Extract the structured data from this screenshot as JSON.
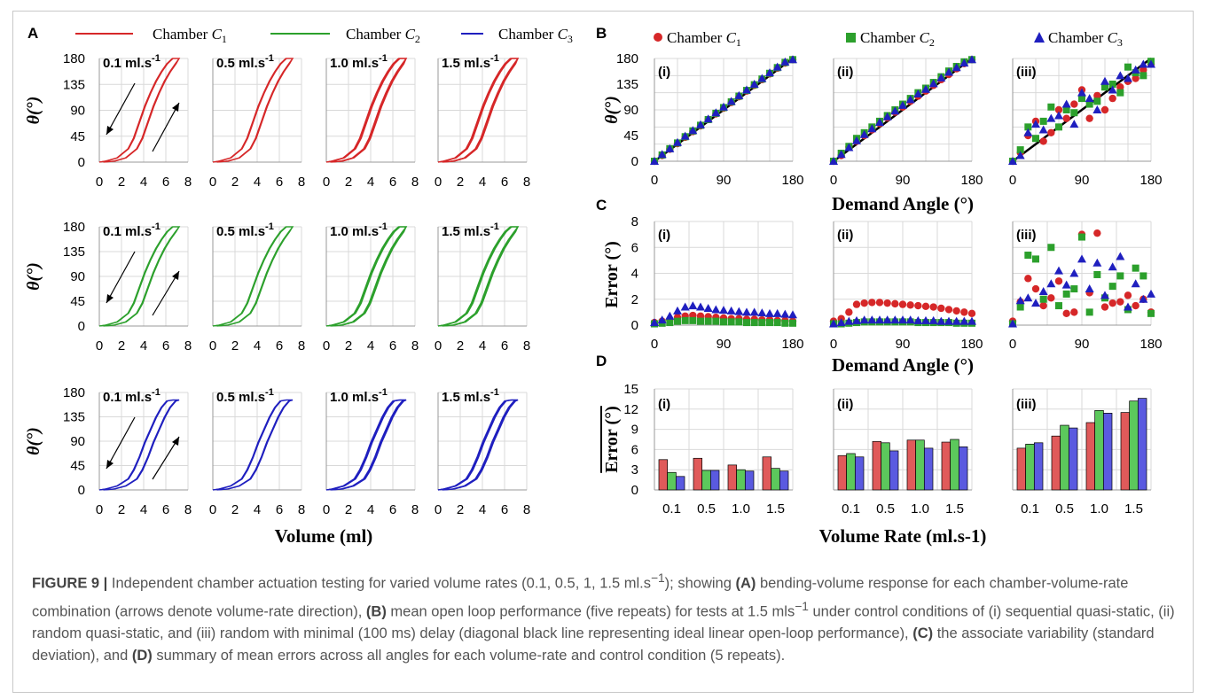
{
  "panel_letters": {
    "A": "A",
    "B": "B",
    "C": "C",
    "D": "D"
  },
  "legend_A": [
    "Chamber C1",
    "Chamber C2",
    "Chamber C3"
  ],
  "legend_B": [
    "Chamber C1",
    "Chamber C2",
    "Chamber C3"
  ],
  "colors": {
    "c1": "#d62728",
    "c2": "#2ca02c",
    "c3": "#1f1fbf",
    "c1_bar": "#e05a5a",
    "c2_bar": "#5cc85c",
    "c3_bar": "#5a5ae0"
  },
  "rate_labels": [
    "0.1 ml.s",
    "0.5 ml.s",
    "1.0 ml.s",
    "1.5 ml.s"
  ],
  "rate_sup": "-1",
  "a_ylabel": "θ(°)",
  "a_xlabel": "Volume (ml)",
  "a_xticks": [
    "0",
    "2",
    "4",
    "6",
    "8"
  ],
  "a_yticks": [
    "0",
    "45",
    "90",
    "135",
    "180"
  ],
  "b_ylabel": "θ(°)",
  "b_xlabel": "Demand Angle (°)",
  "c_ylabel": "Error (°)",
  "c_xlabel": "Demand Angle (°)",
  "d_ylabel": "Error (°)",
  "d_xlabel": "Volume Rate (ml.s-1)",
  "sub_labels": [
    "(i)",
    "(ii)",
    "(iii)"
  ],
  "bc_xticks": [
    "0",
    "90",
    "180"
  ],
  "b_yticks": [
    "0",
    "45",
    "90",
    "135",
    "180"
  ],
  "c_yticks": [
    "0",
    "2",
    "4",
    "6",
    "8"
  ],
  "d_yticks": [
    "0",
    "3",
    "6",
    "9",
    "12",
    "15"
  ],
  "d_xticks": [
    "0.1",
    "0.5",
    "1.0",
    "1.5"
  ],
  "caption": {
    "fig": "FIGURE 9 |",
    "text1": " Independent chamber actuation testing for varied volume rates (0.1, 0.5, 1, 1.5 ml.s",
    "sup1": "−1",
    "text2": "); showing ",
    "a": "(A)",
    "text3": " bending-volume response for each chamber-volume-rate combination (arrows denote volume-rate direction), ",
    "b": "(B)",
    "text4": " mean open loop performance (five repeats) for tests at 1.5 mls",
    "sup2": "−1",
    "text5": " under control conditions of (i) sequential quasi-static, (ii) random quasi-static, and (iii) random with minimal (100 ms) delay (diagonal black line representing ideal linear open-loop performance), ",
    "c": "(C)",
    "text6": " the associate variability (standard deviation), and ",
    "d": "(D)",
    "text7": " summary of mean errors across all angles for each volume-rate and control condition (5 repeats)."
  },
  "chart_data": [
    {
      "type": "line",
      "title": "A",
      "xlabel": "Volume (ml)",
      "ylabel": "θ(°)",
      "xlim": [
        0,
        8
      ],
      "ylim": [
        0,
        195
      ],
      "series": [
        {
          "name": "Chamber C1",
          "x": [
            0,
            1,
            2,
            3,
            3.5,
            4,
            4.5,
            5,
            5.5,
            6,
            6.5,
            7
          ],
          "values": [
            0,
            2,
            8,
            25,
            45,
            75,
            105,
            130,
            152,
            170,
            185,
            195
          ]
        },
        {
          "name": "Chamber C2",
          "x": [
            0,
            1,
            2,
            3,
            3.5,
            4,
            4.5,
            5,
            5.5,
            6,
            6.5,
            7
          ],
          "values": [
            0,
            2,
            8,
            25,
            45,
            75,
            105,
            130,
            152,
            170,
            185,
            195
          ]
        },
        {
          "name": "Chamber C3",
          "x": [
            0,
            1,
            2,
            3,
            3.5,
            4,
            4.5,
            5,
            5.5,
            6,
            6.5,
            7
          ],
          "values": [
            0,
            2,
            8,
            22,
            40,
            65,
            95,
            120,
            145,
            165,
            178,
            180
          ]
        }
      ]
    },
    {
      "type": "scatter",
      "title": "B",
      "xlabel": "Demand Angle (°)",
      "ylabel": "θ(°)",
      "xlim": [
        0,
        180
      ],
      "ylim": [
        0,
        180
      ],
      "panels": {
        "i": {
          "x": [
            0,
            10,
            20,
            30,
            40,
            50,
            60,
            70,
            80,
            90,
            100,
            110,
            120,
            130,
            140,
            150,
            160,
            170,
            180
          ],
          "c1": [
            0,
            10,
            21,
            31,
            42,
            52,
            62,
            73,
            83,
            93,
            103,
            113,
            123,
            133,
            143,
            153,
            163,
            172,
            178
          ],
          "c2": [
            0,
            11,
            22,
            32,
            43,
            53,
            63,
            73,
            84,
            94,
            104,
            114,
            124,
            134,
            144,
            154,
            164,
            173,
            178
          ],
          "c3": [
            0,
            12,
            22,
            33,
            44,
            54,
            64,
            74,
            85,
            95,
            105,
            115,
            125,
            135,
            145,
            155,
            165,
            174,
            178
          ]
        },
        "ii": {
          "x": [
            0,
            10,
            20,
            30,
            40,
            50,
            60,
            70,
            80,
            90,
            100,
            110,
            120,
            130,
            140,
            150,
            160,
            170,
            180
          ],
          "c1": [
            0,
            10,
            25,
            35,
            45,
            55,
            66,
            76,
            86,
            95,
            105,
            114,
            123,
            133,
            143,
            152,
            162,
            171,
            178
          ],
          "c2": [
            0,
            14,
            26,
            40,
            50,
            60,
            70,
            80,
            90,
            100,
            110,
            120,
            128,
            138,
            148,
            158,
            166,
            174,
            178
          ],
          "c3": [
            0,
            12,
            24,
            36,
            47,
            57,
            68,
            78,
            88,
            98,
            108,
            118,
            126,
            136,
            146,
            156,
            164,
            172,
            178
          ]
        },
        "iii": {
          "x": [
            0,
            10,
            20,
            30,
            40,
            50,
            60,
            70,
            80,
            90,
            100,
            110,
            120,
            130,
            140,
            150,
            160,
            170,
            180
          ],
          "c1": [
            0,
            15,
            45,
            70,
            35,
            50,
            90,
            75,
            100,
            125,
            75,
            115,
            90,
            110,
            130,
            140,
            145,
            160,
            170
          ],
          "c2": [
            0,
            20,
            60,
            40,
            70,
            95,
            60,
            90,
            85,
            110,
            100,
            105,
            130,
            135,
            120,
            165,
            155,
            150,
            175
          ],
          "c3": [
            0,
            10,
            50,
            65,
            55,
            75,
            80,
            100,
            65,
            120,
            110,
            90,
            140,
            125,
            150,
            145,
            160,
            170,
            170
          ]
        }
      }
    },
    {
      "type": "scatter",
      "title": "C",
      "xlabel": "Demand Angle (°)",
      "ylabel": "Error (°)",
      "xlim": [
        0,
        180
      ],
      "ylim": [
        0,
        8
      ],
      "panels": {
        "i": {
          "x": [
            0,
            10,
            20,
            30,
            40,
            50,
            60,
            70,
            80,
            90,
            100,
            110,
            120,
            130,
            140,
            150,
            160,
            170,
            180
          ],
          "c1": [
            0.2,
            0.3,
            0.4,
            0.6,
            0.7,
            0.75,
            0.7,
            0.65,
            0.6,
            0.55,
            0.5,
            0.5,
            0.45,
            0.45,
            0.4,
            0.4,
            0.35,
            0.35,
            0.3
          ],
          "c2": [
            0.1,
            0.15,
            0.2,
            0.3,
            0.35,
            0.35,
            0.3,
            0.3,
            0.3,
            0.25,
            0.25,
            0.25,
            0.2,
            0.2,
            0.2,
            0.2,
            0.2,
            0.15,
            0.15
          ],
          "c3": [
            0.2,
            0.4,
            0.7,
            1.1,
            1.4,
            1.5,
            1.4,
            1.3,
            1.2,
            1.15,
            1.1,
            1.05,
            1.0,
            1.0,
            0.95,
            0.9,
            0.9,
            0.85,
            0.8
          ]
        },
        "ii": {
          "x": [
            0,
            10,
            20,
            30,
            40,
            50,
            60,
            70,
            80,
            90,
            100,
            110,
            120,
            130,
            140,
            150,
            160,
            170,
            180
          ],
          "c1": [
            0.3,
            0.5,
            1.0,
            1.6,
            1.7,
            1.75,
            1.75,
            1.7,
            1.65,
            1.6,
            1.55,
            1.5,
            1.45,
            1.4,
            1.3,
            1.2,
            1.1,
            1.0,
            0.9
          ],
          "c2": [
            0.1,
            0.1,
            0.15,
            0.2,
            0.25,
            0.25,
            0.25,
            0.25,
            0.25,
            0.25,
            0.25,
            0.2,
            0.2,
            0.2,
            0.2,
            0.2,
            0.15,
            0.15,
            0.15
          ],
          "c3": [
            0.1,
            0.2,
            0.3,
            0.35,
            0.4,
            0.4,
            0.4,
            0.4,
            0.4,
            0.4,
            0.4,
            0.35,
            0.35,
            0.35,
            0.3,
            0.3,
            0.3,
            0.3,
            0.3
          ]
        },
        "iii": {
          "x": [
            0,
            10,
            20,
            30,
            40,
            50,
            60,
            70,
            80,
            90,
            100,
            110,
            120,
            130,
            140,
            150,
            160,
            170,
            180
          ],
          "c1": [
            0.3,
            1.8,
            3.6,
            2.8,
            1.5,
            2.1,
            3.4,
            0.9,
            1.0,
            7.0,
            2.5,
            7.1,
            1.4,
            1.7,
            1.8,
            2.3,
            1.5,
            2.0,
            1.0
          ],
          "c2": [
            0.1,
            1.4,
            5.4,
            5.1,
            2.0,
            6.0,
            1.5,
            2.4,
            2.8,
            6.8,
            1.0,
            3.9,
            2.1,
            3.0,
            3.8,
            1.2,
            4.4,
            3.8,
            0.9
          ],
          "c3": [
            0.1,
            1.9,
            2.1,
            1.7,
            2.6,
            3.2,
            4.2,
            3.1,
            4.0,
            5.1,
            2.8,
            4.8,
            2.3,
            4.5,
            5.3,
            1.4,
            3.2,
            2.0,
            2.4
          ]
        }
      }
    },
    {
      "type": "bar",
      "title": "D",
      "xlabel": "Volume Rate (ml.s-1)",
      "ylabel": "Error (°)",
      "ylim": [
        0,
        15
      ],
      "categories": [
        "0.1",
        "0.5",
        "1.0",
        "1.5"
      ],
      "panels": {
        "i": {
          "series": [
            {
              "name": "Chamber C1",
              "values": [
                4.5,
                4.7,
                3.7,
                4.9
              ]
            },
            {
              "name": "Chamber C2",
              "values": [
                2.6,
                2.9,
                3.0,
                3.2
              ]
            },
            {
              "name": "Chamber C3",
              "values": [
                2.0,
                2.9,
                2.8,
                2.8
              ]
            }
          ]
        },
        "ii": {
          "series": [
            {
              "name": "Chamber C1",
              "values": [
                5.1,
                7.2,
                7.4,
                7.1
              ]
            },
            {
              "name": "Chamber C2",
              "values": [
                5.4,
                7.0,
                7.4,
                7.5
              ]
            },
            {
              "name": "Chamber C3",
              "values": [
                4.9,
                5.8,
                6.2,
                6.4
              ]
            }
          ]
        },
        "iii": {
          "series": [
            {
              "name": "Chamber C1",
              "values": [
                6.2,
                8.0,
                10.0,
                11.5
              ]
            },
            {
              "name": "Chamber C2",
              "values": [
                6.8,
                9.6,
                11.8,
                13.2
              ]
            },
            {
              "name": "Chamber C3",
              "values": [
                7.0,
                9.2,
                11.4,
                13.6
              ]
            }
          ]
        }
      }
    }
  ]
}
